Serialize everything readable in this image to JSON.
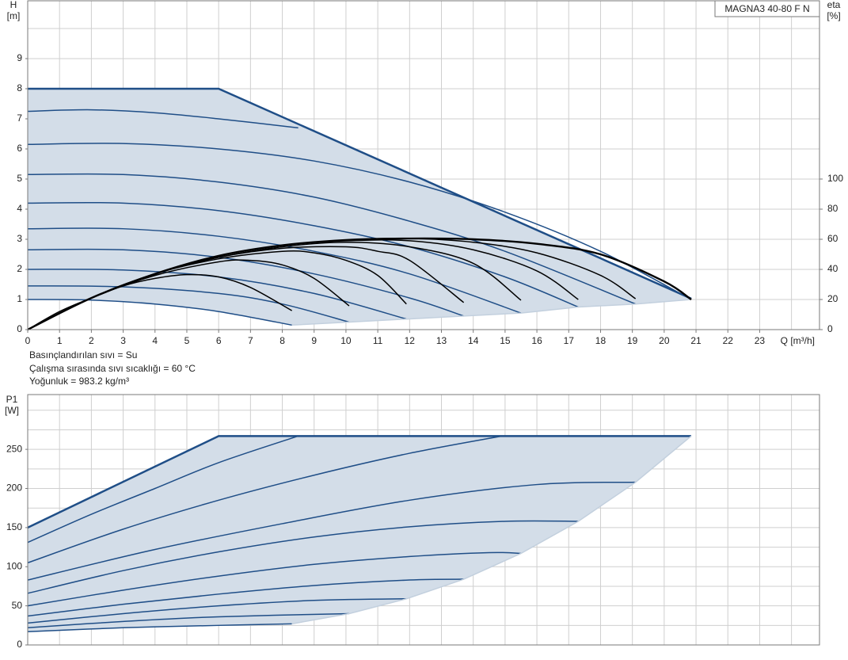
{
  "chart_data": [
    {
      "type": "line",
      "title": "MAGNA3 40-80 F N",
      "x_label": "Q [m³/h]",
      "y_label": "H",
      "y_unit": "[m]",
      "y2_label": "eta",
      "y2_unit": "[%]",
      "notes": [
        "Basınçlandırılan sıvı = Su",
        "Çalışma sırasında sıvı sıcaklığı = 60 °C",
        "Yoğunluk = 983.2 kg/m³"
      ],
      "area_color": "#d3dde8",
      "xlim": [
        0,
        24.88
      ],
      "xticks": [
        0,
        1,
        2,
        3,
        4,
        5,
        6,
        7,
        8,
        9,
        10,
        11,
        12,
        13,
        14,
        15,
        16,
        17,
        18,
        19,
        20,
        21,
        22,
        23
      ],
      "xgrid": [
        0,
        1,
        2,
        3,
        4,
        5,
        6,
        7,
        8,
        9,
        10,
        11,
        12,
        13,
        14,
        15,
        16,
        17,
        18,
        19,
        20,
        21,
        22,
        23,
        24
      ],
      "ylim": [
        0,
        10.92
      ],
      "yticks": [
        0,
        1,
        2,
        3,
        4,
        5,
        6,
        7,
        8,
        9
      ],
      "ygrid": [
        0,
        1,
        2,
        3,
        4,
        5,
        6,
        7,
        8,
        9,
        10
      ],
      "y2lim": [
        0,
        218.4
      ],
      "y2ticks": [
        0,
        20,
        40,
        60,
        80,
        100
      ],
      "series": [
        {
          "color": "#1f4e87",
          "smooth": false,
          "x": [
            0,
            6,
            20.85
          ],
          "values": [
            8,
            8,
            1.03
          ]
        },
        {
          "color": "#1f4e87",
          "x": [
            0,
            2,
            4,
            6,
            8.5
          ],
          "values": [
            7.25,
            7.3,
            7.2,
            7.0,
            6.7
          ]
        },
        {
          "color": "#1f4e87",
          "x": [
            0,
            3,
            6,
            9,
            12,
            15,
            18,
            20.85
          ],
          "values": [
            6.15,
            6.18,
            6.0,
            5.6,
            4.9,
            3.9,
            2.6,
            1.0
          ]
        },
        {
          "color": "#1f4e87",
          "x": [
            0,
            3,
            6,
            9,
            12,
            15,
            19.1
          ],
          "values": [
            5.15,
            5.15,
            4.9,
            4.4,
            3.6,
            2.6,
            0.85
          ]
        },
        {
          "color": "#1f4e87",
          "x": [
            0,
            3,
            6,
            9,
            12,
            15,
            17.3
          ],
          "values": [
            4.2,
            4.2,
            3.95,
            3.45,
            2.75,
            1.75,
            0.75
          ]
        },
        {
          "color": "#1f4e87",
          "x": [
            0,
            3,
            6,
            9,
            12,
            15.5
          ],
          "values": [
            3.35,
            3.35,
            3.1,
            2.6,
            1.85,
            0.55
          ]
        },
        {
          "color": "#1f4e87",
          "x": [
            0,
            3,
            6,
            9,
            12,
            13.7
          ],
          "values": [
            2.65,
            2.65,
            2.4,
            1.85,
            1.05,
            0.45
          ]
        },
        {
          "color": "#1f4e87",
          "x": [
            0,
            3,
            6,
            9,
            11.9
          ],
          "values": [
            2.0,
            1.98,
            1.75,
            1.2,
            0.35
          ]
        },
        {
          "color": "#1f4e87",
          "x": [
            0,
            3,
            6,
            8,
            10.1
          ],
          "values": [
            1.45,
            1.42,
            1.2,
            0.85,
            0.25
          ]
        },
        {
          "color": "#1f4e87",
          "x": [
            0,
            2,
            4,
            6,
            8.3
          ],
          "values": [
            1.0,
            0.98,
            0.85,
            0.6,
            0.15
          ]
        },
        {
          "color": "#c3d0de",
          "smooth": false,
          "x": [
            8.3,
            10.1,
            11.9,
            13.7,
            15.5,
            17.3,
            19.1,
            20.85
          ],
          "values": [
            0.15,
            0.25,
            0.35,
            0.45,
            0.55,
            0.75,
            0.85,
            1.0
          ]
        },
        {
          "color": "#000000",
          "axis": "y2",
          "x": [
            0,
            1,
            2,
            3,
            4,
            5,
            6,
            7,
            8.3
          ],
          "values": [
            0,
            12,
            21,
            29,
            34,
            36.5,
            35,
            28,
            12.6
          ]
        },
        {
          "color": "#000000",
          "axis": "y2",
          "x": [
            0,
            2,
            4,
            6,
            7,
            8,
            9,
            10.1
          ],
          "values": [
            0,
            21,
            36,
            45,
            46,
            43,
            34,
            15.8
          ]
        },
        {
          "color": "#000000",
          "axis": "y2",
          "x": [
            0,
            2,
            4,
            6,
            8,
            9,
            10,
            11,
            11.9
          ],
          "values": [
            0,
            21,
            37,
            47,
            52,
            51,
            46,
            36,
            17
          ]
        },
        {
          "color": "#000000",
          "axis": "y2",
          "x": [
            0,
            2,
            4,
            6,
            8,
            10,
            11,
            12,
            13.7
          ],
          "values": [
            0,
            21,
            37,
            48,
            54,
            55,
            52,
            46,
            18
          ]
        },
        {
          "color": "#000000",
          "axis": "y2",
          "x": [
            0,
            2,
            4,
            6,
            8,
            10,
            12,
            14,
            15.5
          ],
          "values": [
            0,
            21,
            37,
            48,
            55,
            58,
            55,
            44,
            19.5
          ]
        },
        {
          "color": "#000000",
          "axis": "y2",
          "x": [
            0,
            2,
            4,
            6,
            8,
            10,
            12,
            14,
            16,
            17.3
          ],
          "values": [
            0,
            21,
            37,
            49,
            56,
            59,
            59,
            53,
            39,
            20
          ]
        },
        {
          "color": "#000000",
          "axis": "y2",
          "x": [
            0,
            2,
            4,
            6,
            8,
            10,
            12,
            14,
            16,
            18,
            19.1
          ],
          "values": [
            0,
            21,
            37,
            49,
            56,
            59.5,
            60.5,
            58,
            51,
            36,
            20.5
          ]
        },
        {
          "color": "#000000",
          "axis": "y2",
          "x": [
            0,
            2,
            4,
            6,
            8,
            10,
            12,
            14,
            16,
            18,
            20,
            20.85
          ],
          "values": [
            0,
            21,
            37,
            49,
            56,
            59.5,
            60.5,
            60,
            57,
            50,
            32,
            20
          ]
        }
      ]
    },
    {
      "type": "line",
      "y_label": "P1",
      "y_unit": "[W]",
      "area_color": "#d3dde8",
      "xlim": [
        0,
        24.88
      ],
      "xgrid": [
        0,
        1,
        2,
        3,
        4,
        5,
        6,
        7,
        8,
        9,
        10,
        11,
        12,
        13,
        14,
        15,
        16,
        17,
        18,
        19,
        20,
        21,
        22,
        23,
        24
      ],
      "ylim": [
        0,
        320
      ],
      "yticks": [
        0,
        50,
        100,
        150,
        200,
        250
      ],
      "ygrid": [
        0,
        25,
        50,
        75,
        100,
        125,
        150,
        175,
        200,
        225,
        250,
        275,
        300
      ],
      "series": [
        {
          "color": "#1f4e87",
          "smooth": false,
          "x": [
            0,
            6,
            20.85
          ],
          "values": [
            150,
            267,
            267
          ]
        },
        {
          "color": "#1f4e87",
          "x": [
            0,
            2,
            4,
            6,
            8.5
          ],
          "values": [
            131,
            167,
            200,
            233,
            267
          ]
        },
        {
          "color": "#1f4e87",
          "x": [
            0,
            3,
            6,
            9,
            12,
            14.9
          ],
          "values": [
            105,
            148,
            185,
            217,
            245,
            267
          ]
        },
        {
          "color": "#1f4e87",
          "x": [
            0,
            4,
            8,
            12,
            16,
            19.1
          ],
          "values": [
            83,
            122,
            155,
            185,
            205,
            208
          ]
        },
        {
          "color": "#1f4e87",
          "x": [
            0,
            3,
            6,
            9,
            12,
            15,
            17.3
          ],
          "values": [
            66,
            95,
            119,
            138,
            151,
            158,
            158
          ]
        },
        {
          "color": "#1f4e87",
          "x": [
            0,
            3,
            6,
            9,
            12,
            14.5,
            15.5
          ],
          "values": [
            50,
            70,
            88,
            103,
            113,
            118,
            117
          ]
        },
        {
          "color": "#1f4e87",
          "x": [
            0,
            3,
            6,
            9,
            12,
            13.7
          ],
          "values": [
            37,
            52,
            65,
            76,
            83,
            84
          ]
        },
        {
          "color": "#1f4e87",
          "x": [
            0,
            3,
            6,
            9,
            11.9
          ],
          "values": [
            28,
            40,
            50,
            57,
            59
          ]
        },
        {
          "color": "#1f4e87",
          "x": [
            0,
            3,
            6,
            10.1
          ],
          "values": [
            22,
            30,
            36,
            40
          ]
        },
        {
          "color": "#1f4e87",
          "x": [
            0,
            3,
            6,
            8.3
          ],
          "values": [
            17,
            22,
            25,
            27
          ]
        },
        {
          "color": "#c3d0de",
          "smooth": false,
          "x": [
            8.3,
            10.1,
            11.9,
            13.7,
            15.5,
            17.3,
            19.1,
            20.85
          ],
          "values": [
            27,
            40,
            59,
            84,
            117,
            158,
            208,
            267
          ]
        }
      ]
    }
  ]
}
